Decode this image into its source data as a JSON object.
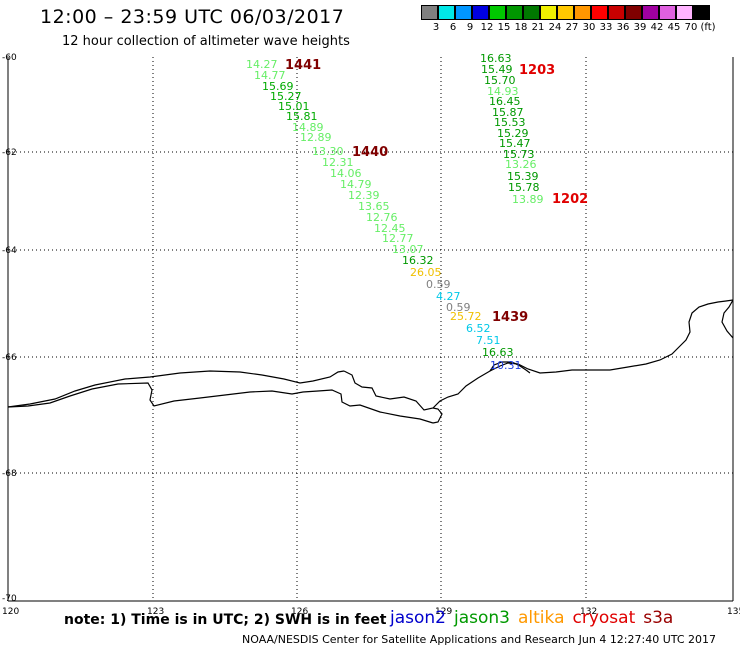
{
  "header": {
    "title": "12:00 – 23:59 UTC 06/03/2017",
    "subtitle": "12 hour collection of altimeter wave heights"
  },
  "colorbar": {
    "unit": "(ft)",
    "cells": [
      {
        "color": "#808080",
        "label": "3"
      },
      {
        "color": "#00e8e8",
        "label": "6"
      },
      {
        "color": "#0096ff",
        "label": "9"
      },
      {
        "color": "#0000e0",
        "label": "12"
      },
      {
        "color": "#00c800",
        "label": "15"
      },
      {
        "color": "#009600",
        "label": "18"
      },
      {
        "color": "#007800",
        "label": "21"
      },
      {
        "color": "#f0f000",
        "label": "24"
      },
      {
        "color": "#ffc800",
        "label": "27"
      },
      {
        "color": "#ff9600",
        "label": "30"
      },
      {
        "color": "#ff0000",
        "label": "33"
      },
      {
        "color": "#c80000",
        "label": "36"
      },
      {
        "color": "#800000",
        "label": "39"
      },
      {
        "color": "#a000a0",
        "label": "42"
      },
      {
        "color": "#e060e0",
        "label": "45"
      },
      {
        "color": "#ffb4ff",
        "label": "70"
      },
      {
        "color": "#000000",
        "label": "(ft)"
      }
    ]
  },
  "axes": {
    "lat_labels": [
      "-60",
      "-62",
      "-64",
      "-66",
      "-68",
      "-70"
    ],
    "lon_labels": [
      "120",
      "123",
      "126",
      "129",
      "132",
      "135"
    ]
  },
  "map_data": {
    "track_west": [
      {
        "v": "14.27",
        "c": "#66ee66"
      },
      {
        "v": "14.77",
        "c": "#66ee66"
      },
      {
        "v": "15.69",
        "c": "#00aa00"
      },
      {
        "v": "15.27",
        "c": "#00aa00"
      },
      {
        "v": "15.01",
        "c": "#00aa00"
      },
      {
        "v": "15.81",
        "c": "#00aa00"
      },
      {
        "v": "14.89",
        "c": "#66ee66"
      },
      {
        "v": "12.89",
        "c": "#66ee66"
      },
      {
        "v": "13.30",
        "c": "#66ee66"
      },
      {
        "v": "12.31",
        "c": "#66ee66"
      },
      {
        "v": "14.06",
        "c": "#66ee66"
      },
      {
        "v": "14.79",
        "c": "#66ee66"
      },
      {
        "v": "12.39",
        "c": "#66ee66"
      },
      {
        "v": "13.65",
        "c": "#66ee66"
      },
      {
        "v": "12.76",
        "c": "#66ee66"
      },
      {
        "v": "12.45",
        "c": "#66ee66"
      },
      {
        "v": "12.77",
        "c": "#66ee66"
      },
      {
        "v": "13.07",
        "c": "#66ee66"
      },
      {
        "v": "16.32",
        "c": "#009900"
      },
      {
        "v": "26.05",
        "c": "#f0c000"
      },
      {
        "v": "0.59",
        "c": "#808080"
      },
      {
        "v": "4.27",
        "c": "#00c8e8"
      },
      {
        "v": "0.59",
        "c": "#808080"
      },
      {
        "v": "25.72",
        "c": "#f0c000"
      },
      {
        "v": "6.52",
        "c": "#00c8e8"
      },
      {
        "v": "7.51",
        "c": "#00c8e8"
      },
      {
        "v": "16.63",
        "c": "#009900"
      },
      {
        "v": "10.31",
        "c": "#2040e0"
      }
    ],
    "track_east": [
      {
        "v": "16.63",
        "c": "#009900"
      },
      {
        "v": "15.49",
        "c": "#009900"
      },
      {
        "v": "15.70",
        "c": "#009900"
      },
      {
        "v": "14.93",
        "c": "#66ee66"
      },
      {
        "v": "16.45",
        "c": "#009900"
      },
      {
        "v": "15.87",
        "c": "#009900"
      },
      {
        "v": "15.53",
        "c": "#009900"
      },
      {
        "v": "15.29",
        "c": "#009900"
      },
      {
        "v": "15.47",
        "c": "#009900"
      },
      {
        "v": "15.73",
        "c": "#009900"
      },
      {
        "v": "13.26",
        "c": "#66ee66"
      },
      {
        "v": "15.39",
        "c": "#009900"
      },
      {
        "v": "15.78",
        "c": "#009900"
      },
      {
        "v": "13.89",
        "c": "#66ee66"
      }
    ],
    "pass_labels": [
      {
        "text": "1441",
        "color": "#800000"
      },
      {
        "text": "1440",
        "color": "#800000"
      },
      {
        "text": "1439",
        "color": "#800000"
      },
      {
        "text": "1203",
        "color": "#e00000"
      },
      {
        "text": "1202",
        "color": "#e00000"
      }
    ]
  },
  "footer": {
    "note": "note: 1) Time is in UTC; 2) SWH is in feet",
    "legend": [
      {
        "name": "jason2",
        "color": "#0000cc"
      },
      {
        "name": "jason3",
        "color": "#009900"
      },
      {
        "name": "altika",
        "color": "#ff9900"
      },
      {
        "name": "cryosat",
        "color": "#e00000"
      },
      {
        "name": "s3a",
        "color": "#990000"
      }
    ],
    "credit": "NOAA/NESDIS Center for Satellite Applications and Research   Jun  4 12:27:40 UTC 2017"
  }
}
